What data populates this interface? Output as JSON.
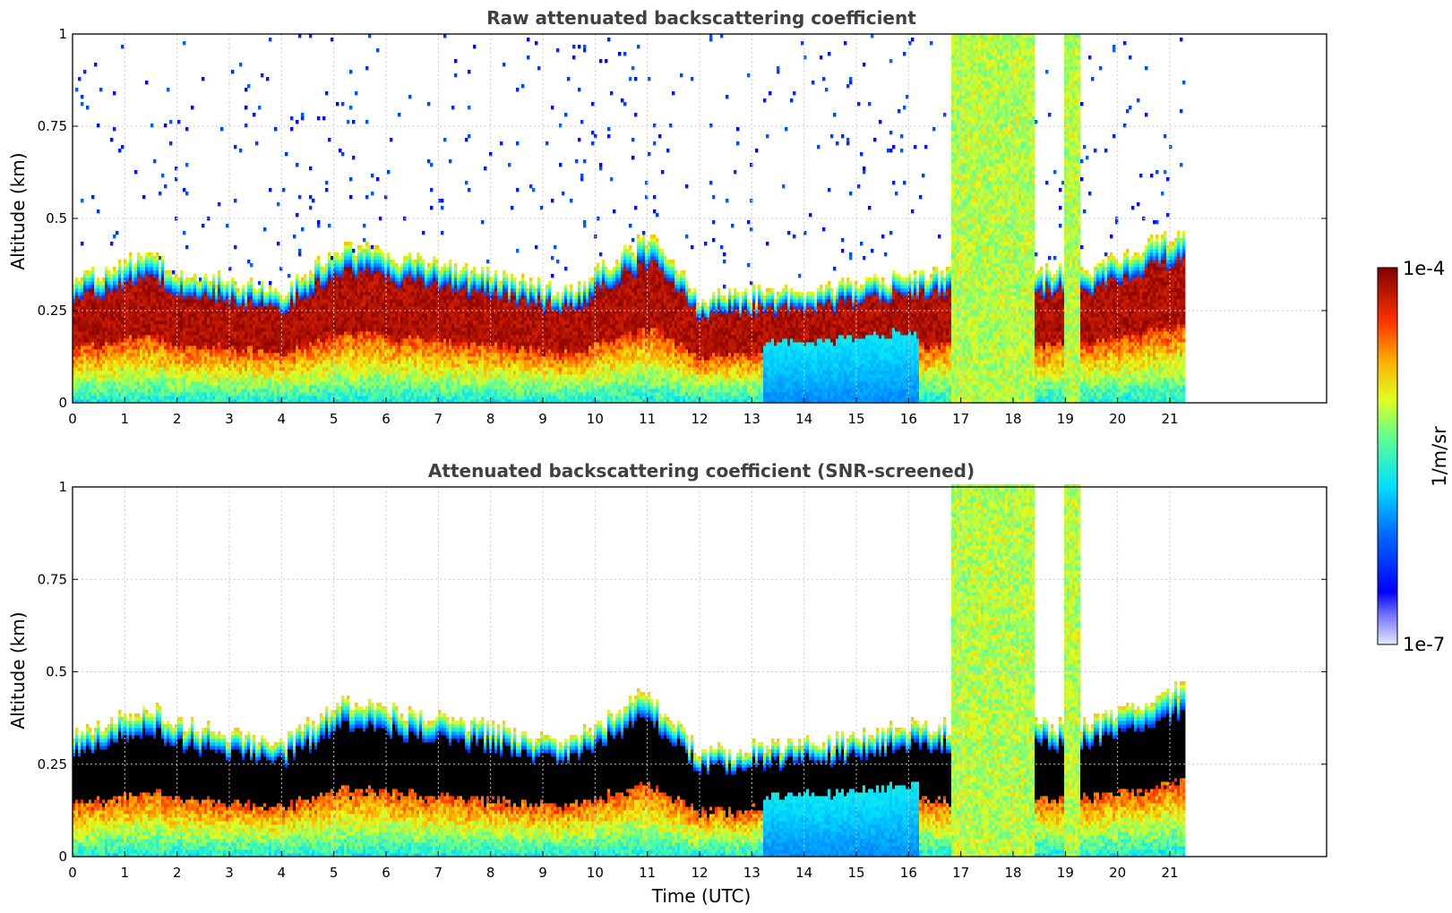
{
  "chart_data": [
    {
      "type": "heatmap",
      "title": "Raw attenuated backscattering coefficient",
      "xlabel": "",
      "ylabel": "Altitude (km)",
      "xlim": [
        0,
        24
      ],
      "ylim": [
        0,
        1
      ],
      "x_ticks": [
        "0",
        "1",
        "2",
        "3",
        "4",
        "5",
        "6",
        "7",
        "8",
        "9",
        "10",
        "11",
        "12",
        "13",
        "14",
        "15",
        "16",
        "17",
        "18",
        "19",
        "20",
        "21"
      ],
      "y_ticks": [
        "0",
        "0.25",
        "0.5",
        "0.75",
        "1"
      ],
      "grid": true,
      "data_end_time": 21.3,
      "colorscale": "jet, log",
      "layer_top_km": [
        {
          "t": 0,
          "v": 0.33
        },
        {
          "t": 1.5,
          "v": 0.4
        },
        {
          "t": 2,
          "v": 0.36
        },
        {
          "t": 4,
          "v": 0.3
        },
        {
          "t": 5.2,
          "v": 0.42
        },
        {
          "t": 8,
          "v": 0.35
        },
        {
          "t": 9.5,
          "v": 0.3
        },
        {
          "t": 11,
          "v": 0.45
        },
        {
          "t": 12,
          "v": 0.28
        },
        {
          "t": 13.5,
          "v": 0.3
        },
        {
          "t": 15,
          "v": 0.32
        },
        {
          "t": 16,
          "v": 0.35
        },
        {
          "t": 19.5,
          "v": 0.36
        },
        {
          "t": 21,
          "v": 0.45
        }
      ],
      "precipitation_periods": [
        {
          "start": 16.8,
          "end": 18.4,
          "reflectivity": "1e-5"
        },
        {
          "start": 19,
          "end": 19.3,
          "reflectivity": "1e-5"
        }
      ]
    },
    {
      "type": "heatmap",
      "title": "Attenuated backscattering coefficient (SNR-screened)",
      "xlabel": "Time (UTC)",
      "ylabel": "Altitude (km)",
      "xlim": [
        0,
        24
      ],
      "ylim": [
        0,
        1
      ],
      "x_ticks": [
        "0",
        "1",
        "2",
        "3",
        "4",
        "5",
        "6",
        "7",
        "8",
        "9",
        "10",
        "11",
        "12",
        "13",
        "14",
        "15",
        "16",
        "17",
        "18",
        "19",
        "20",
        "21"
      ],
      "y_ticks": [
        "0",
        "0.25",
        "0.5",
        "0.75",
        "1"
      ],
      "grid": true,
      "data_end_time": 21.3,
      "colorscale": "jet, log",
      "saturated_color": "#000000"
    }
  ],
  "colorbar": {
    "label": "1/m/sr",
    "max_label": "1e-4",
    "min_label": "1e-7"
  },
  "colors": {
    "title": "#404040",
    "grid": "#c8c8c8",
    "saturated": "#000000"
  }
}
